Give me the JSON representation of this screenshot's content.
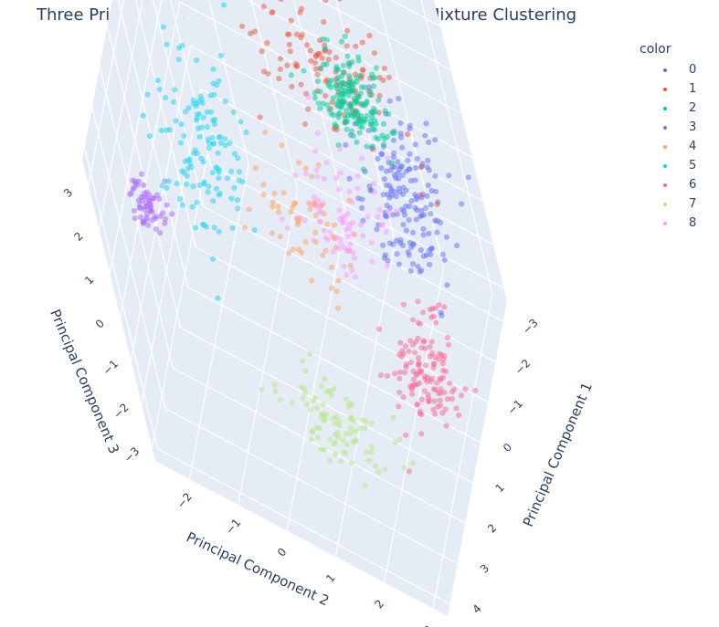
{
  "chart_data": {
    "type": "scatter",
    "title": "Three Principal Component Bayesian Gaussian Mixture Clustering",
    "xlabel": "Principal Component 1",
    "ylabel": "Principal Component 2",
    "zlabel": "Principal Component 3",
    "x_ticks": [
      "−3",
      "−2",
      "−1",
      "0",
      "1",
      "2",
      "3",
      "4"
    ],
    "y_ticks": [
      "−2",
      "−1",
      "0",
      "1",
      "2",
      "3"
    ],
    "z_ticks": [
      "−3",
      "−2",
      "−1",
      "0",
      "1",
      "2",
      "3"
    ],
    "xlim": [
      -3.5,
      4.3
    ],
    "ylim": [
      -2.7,
      3.3
    ],
    "zlim": [
      -3.3,
      3.6
    ],
    "legend_title": "color",
    "legend_placement": "top-right",
    "background_color": "#e5ecf6",
    "grid": true,
    "series": [
      {
        "name": "0",
        "color": "#636efa",
        "n": 170,
        "center": [
          -1.5,
          2.3,
          0.3
        ],
        "spread": [
          0.7,
          0.45,
          0.7
        ]
      },
      {
        "name": "1",
        "color": "#ef553b",
        "n": 120,
        "center": [
          -2.6,
          0.7,
          1.4
        ],
        "spread": [
          0.35,
          0.8,
          0.9
        ]
      },
      {
        "name": "2",
        "color": "#00cc96",
        "n": 170,
        "center": [
          -2.4,
          1.3,
          1.1
        ],
        "spread": [
          0.3,
          0.35,
          0.45
        ]
      },
      {
        "name": "3",
        "color": "#ab63fa",
        "n": 60,
        "center": [
          2.1,
          -2.3,
          0.7
        ],
        "spread": [
          0.25,
          0.2,
          0.2
        ]
      },
      {
        "name": "4",
        "color": "#ffa15a",
        "n": 60,
        "center": [
          -0.2,
          0.4,
          -0.2
        ],
        "spread": [
          0.5,
          0.5,
          0.5
        ]
      },
      {
        "name": "5",
        "color": "#19d3f3",
        "n": 130,
        "center": [
          0.8,
          -1.2,
          1.5
        ],
        "spread": [
          0.9,
          0.45,
          0.6
        ]
      },
      {
        "name": "6",
        "color": "#ff6692",
        "n": 130,
        "center": [
          0.5,
          2.6,
          -1.6
        ],
        "spread": [
          0.5,
          0.35,
          0.5
        ]
      },
      {
        "name": "7",
        "color": "#b6e880",
        "n": 90,
        "center": [
          2.2,
          0.8,
          -2.3
        ],
        "spread": [
          0.4,
          0.55,
          0.25
        ]
      },
      {
        "name": "8",
        "color": "#ff97ff",
        "n": 80,
        "center": [
          -0.4,
          1.2,
          0.3
        ],
        "spread": [
          0.6,
          0.5,
          0.5
        ]
      }
    ]
  }
}
